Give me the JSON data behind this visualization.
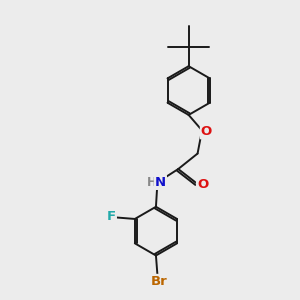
{
  "bg_color": "#ececec",
  "bond_color": "#1a1a1a",
  "bond_width": 1.4,
  "atom_colors": {
    "O": "#dd1111",
    "N": "#1111cc",
    "F": "#22aaaa",
    "Br": "#bb6600",
    "H": "#888888",
    "C": "#1a1a1a"
  },
  "font_size": 8.5,
  "figsize": [
    3.0,
    3.0
  ],
  "dpi": 100
}
